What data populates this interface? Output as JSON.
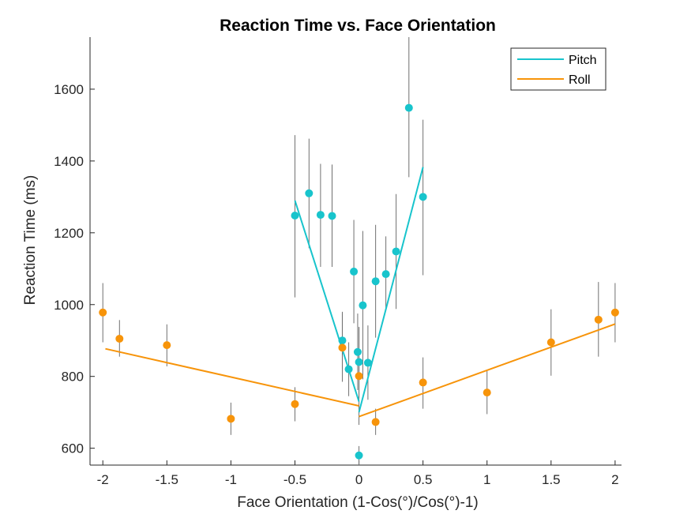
{
  "chart_data": {
    "type": "scatter",
    "title": "Reaction Time vs. Face Orientation",
    "xlabel": "Face Orientation (1-Cos(°)/Cos(°)-1)",
    "ylabel": "Reaction Time (ms)",
    "xlim": [
      -2.1,
      2.05
    ],
    "ylim": [
      553,
      1745
    ],
    "xticks": [
      -2,
      -1.5,
      -1,
      -0.5,
      0,
      0.5,
      1,
      1.5,
      2
    ],
    "xtick_labels": [
      "-2",
      "-1.5",
      "-1",
      "-0.5",
      "0",
      "0.5",
      "1",
      "1.5",
      "2"
    ],
    "yticks": [
      600,
      800,
      1000,
      1200,
      1400,
      1600
    ],
    "ytick_labels": [
      "600",
      "800",
      "1000",
      "1200",
      "1400",
      "1600"
    ],
    "grid": false,
    "legend_position": "top-right",
    "series": [
      {
        "name": "Pitch",
        "color": "#18c4cc",
        "points": [
          {
            "x": -0.5,
            "y": 1248,
            "lo": 1020,
            "hi": 1472
          },
          {
            "x": -0.39,
            "y": 1310,
            "lo": 1157,
            "hi": 1462
          },
          {
            "x": -0.3,
            "y": 1250,
            "lo": 1105,
            "hi": 1392
          },
          {
            "x": -0.21,
            "y": 1247,
            "lo": 1105,
            "hi": 1390
          },
          {
            "x": -0.13,
            "y": 900,
            "lo": 822,
            "hi": 980
          },
          {
            "x": -0.08,
            "y": 820,
            "lo": 745,
            "hi": 895
          },
          {
            "x": -0.04,
            "y": 1092,
            "lo": 948,
            "hi": 1236
          },
          {
            "x": -0.01,
            "y": 868,
            "lo": 762,
            "hi": 975
          },
          {
            "x": 0.0,
            "y": 840,
            "lo": 740,
            "hi": 938
          },
          {
            "x": 0.0,
            "y": 580,
            "lo": 553,
            "hi": 606
          },
          {
            "x": 0.03,
            "y": 998,
            "lo": 792,
            "hi": 1205
          },
          {
            "x": 0.07,
            "y": 838,
            "lo": 735,
            "hi": 942
          },
          {
            "x": 0.13,
            "y": 1065,
            "lo": 908,
            "hi": 1222
          },
          {
            "x": 0.21,
            "y": 1085,
            "lo": 985,
            "hi": 1190
          },
          {
            "x": 0.29,
            "y": 1148,
            "lo": 988,
            "hi": 1308
          },
          {
            "x": 0.39,
            "y": 1548,
            "lo": 1355,
            "hi": 1745
          },
          {
            "x": 0.5,
            "y": 1300,
            "lo": 1082,
            "hi": 1515
          }
        ],
        "fit": [
          {
            "x": [
              -0.5,
              0.0
            ],
            "y": [
              1290,
              730
            ]
          },
          {
            "x": [
              0.0,
              0.5
            ],
            "y": [
              700,
              1383
            ]
          }
        ]
      },
      {
        "name": "Roll",
        "color": "#f7940a",
        "points": [
          {
            "x": -2.0,
            "y": 978,
            "lo": 895,
            "hi": 1060
          },
          {
            "x": -1.87,
            "y": 905,
            "lo": 855,
            "hi": 957
          },
          {
            "x": -1.5,
            "y": 887,
            "lo": 828,
            "hi": 945
          },
          {
            "x": -1.0,
            "y": 682,
            "lo": 637,
            "hi": 727
          },
          {
            "x": -0.5,
            "y": 723,
            "lo": 675,
            "hi": 770
          },
          {
            "x": -0.13,
            "y": 880,
            "lo": 785,
            "hi": 975
          },
          {
            "x": 0.0,
            "y": 801,
            "lo": 665,
            "hi": 935
          },
          {
            "x": 0.13,
            "y": 673,
            "lo": 637,
            "hi": 710
          },
          {
            "x": 0.5,
            "y": 783,
            "lo": 710,
            "hi": 853
          },
          {
            "x": 1.0,
            "y": 755,
            "lo": 695,
            "hi": 815
          },
          {
            "x": 1.5,
            "y": 895,
            "lo": 802,
            "hi": 987
          },
          {
            "x": 1.87,
            "y": 958,
            "lo": 855,
            "hi": 1063
          },
          {
            "x": 2.0,
            "y": 978,
            "lo": 895,
            "hi": 1060
          }
        ],
        "fit": [
          {
            "x": [
              -1.98,
              0.0
            ],
            "y": [
              877,
              718
            ]
          },
          {
            "x": [
              0.0,
              2.0
            ],
            "y": [
              688,
              946
            ]
          }
        ]
      }
    ]
  },
  "colors": {
    "errorbar": "#707070",
    "axis": "#262626",
    "background": "#ffffff"
  }
}
